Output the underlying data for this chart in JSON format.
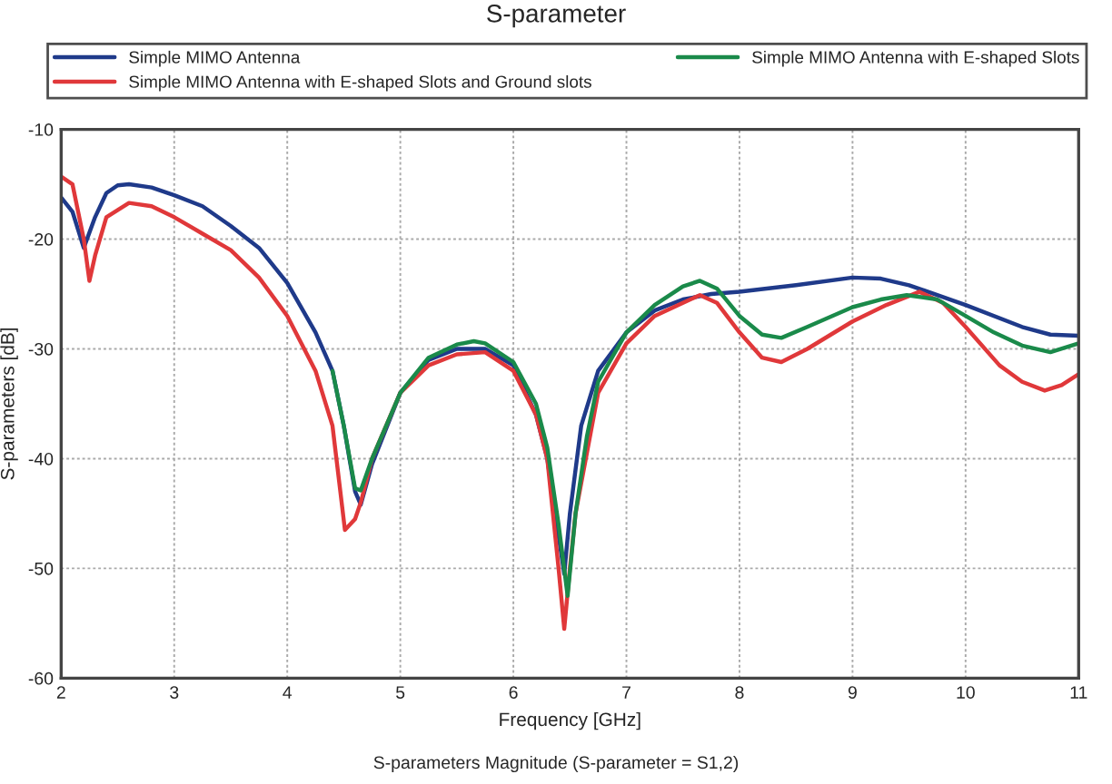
{
  "chart_data": {
    "type": "line",
    "title": "S-parameter",
    "xlabel": "Frequency [GHz]",
    "ylabel": "S-parameters [dB]",
    "annotations": [
      "S-parameters Magnitude (S-parameter = S1,2)"
    ],
    "xlim": [
      2,
      11
    ],
    "ylim": [
      -60,
      -10
    ],
    "xticks": [
      2,
      3,
      4,
      5,
      6,
      7,
      8,
      9,
      10,
      11
    ],
    "yticks": [
      -60,
      -50,
      -40,
      -30,
      -20,
      -10
    ],
    "grid": true,
    "legend": "top",
    "line_style": "solid",
    "marker": "none",
    "series": [
      {
        "name": "Simple MIMO Antenna",
        "color": "#1f3a8a",
        "x": [
          2.0,
          2.1,
          2.2,
          2.3,
          2.4,
          2.5,
          2.6,
          2.8,
          3.0,
          3.25,
          3.5,
          3.75,
          4.0,
          4.25,
          4.4,
          4.5,
          4.6,
          4.65,
          4.75,
          5.0,
          5.25,
          5.5,
          5.75,
          6.0,
          6.2,
          6.3,
          6.4,
          6.45,
          6.5,
          6.6,
          6.75,
          7.0,
          7.25,
          7.5,
          7.75,
          8.0,
          8.5,
          9.0,
          9.25,
          9.5,
          10.0,
          10.5,
          10.75,
          11.0
        ],
        "values": [
          -16.2,
          -17.5,
          -20.8,
          -18,
          -15.8,
          -15.1,
          -15,
          -15.3,
          -16,
          -17,
          -18.8,
          -20.8,
          -24,
          -28.5,
          -32,
          -37,
          -43,
          -44.2,
          -40.5,
          -34,
          -31,
          -30,
          -30,
          -31.5,
          -36,
          -40,
          -47,
          -50.5,
          -45,
          -37,
          -32,
          -28.5,
          -26.5,
          -25.5,
          -25,
          -24.8,
          -24.2,
          -23.5,
          -23.6,
          -24.2,
          -26,
          -28,
          -28.7,
          -28.8
        ]
      },
      {
        "name": "Simple MIMO Antenna with E-shaped Slots and Ground slots",
        "color": "#e0383a",
        "x": [
          2.0,
          2.1,
          2.2,
          2.25,
          2.3,
          2.4,
          2.6,
          2.8,
          3.0,
          3.25,
          3.5,
          3.75,
          4.0,
          4.25,
          4.4,
          4.51,
          4.6,
          4.65,
          4.75,
          5.0,
          5.25,
          5.5,
          5.75,
          6.0,
          6.2,
          6.3,
          6.4,
          6.45,
          6.5,
          6.55,
          6.75,
          7.0,
          7.25,
          7.5,
          7.65,
          7.8,
          8.0,
          8.2,
          8.37,
          8.6,
          9.0,
          9.3,
          9.59,
          9.8,
          10.0,
          10.3,
          10.5,
          10.7,
          10.85,
          11.0
        ],
        "values": [
          -14.3,
          -15,
          -20,
          -23.8,
          -21.5,
          -18,
          -16.7,
          -17,
          -18,
          -19.5,
          -21,
          -23.5,
          -27,
          -32,
          -37,
          -46.5,
          -45.5,
          -44,
          -40,
          -34,
          -31.5,
          -30.5,
          -30.3,
          -32,
          -36,
          -40,
          -50,
          -55.5,
          -50,
          -45,
          -34,
          -29.5,
          -27,
          -25.8,
          -25.1,
          -25.8,
          -28.5,
          -30.8,
          -31.2,
          -30,
          -27.5,
          -26,
          -24.8,
          -25.8,
          -28,
          -31.5,
          -33,
          -33.8,
          -33.3,
          -32.3
        ]
      },
      {
        "name": "Simple MIMO Antenna with E-shaped Slots",
        "color": "#1a8a4a",
        "x": [
          4.4,
          4.5,
          4.6,
          4.65,
          4.75,
          5.0,
          5.25,
          5.5,
          5.65,
          5.75,
          6.0,
          6.2,
          6.3,
          6.4,
          6.48,
          6.55,
          6.65,
          6.75,
          7.0,
          7.25,
          7.5,
          7.65,
          7.8,
          8.0,
          8.2,
          8.37,
          8.6,
          9.0,
          9.25,
          9.48,
          9.75,
          10.0,
          10.25,
          10.5,
          10.75,
          11.0
        ],
        "values": [
          -32,
          -37,
          -42.7,
          -42.9,
          -40,
          -34,
          -30.8,
          -29.6,
          -29.3,
          -29.5,
          -31.2,
          -35,
          -39,
          -46,
          -52.5,
          -45,
          -38,
          -33,
          -28.5,
          -26,
          -24.3,
          -23.8,
          -24.5,
          -27,
          -28.7,
          -29,
          -28,
          -26.2,
          -25.5,
          -25.1,
          -25.5,
          -27,
          -28.5,
          -29.7,
          -30.3,
          -29.5
        ]
      }
    ]
  }
}
